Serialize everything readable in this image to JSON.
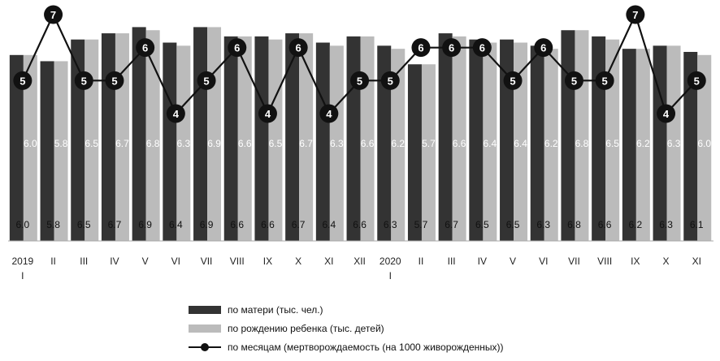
{
  "chart_data": {
    "type": "bar",
    "categories": [
      "2019 I",
      "II",
      "III",
      "IV",
      "V",
      "VI",
      "VII",
      "VIII",
      "IX",
      "X",
      "XI",
      "XII",
      "2020 I",
      "II",
      "III",
      "IV",
      "V",
      "VI",
      "VII",
      "VIII",
      "IX",
      "X",
      "XI"
    ],
    "x_tick_labels": [
      {
        "line1": "2019",
        "line2": "I"
      },
      {
        "line1": "II",
        "line2": ""
      },
      {
        "line1": "III",
        "line2": ""
      },
      {
        "line1": "IV",
        "line2": ""
      },
      {
        "line1": "V",
        "line2": ""
      },
      {
        "line1": "VI",
        "line2": ""
      },
      {
        "line1": "VII",
        "line2": ""
      },
      {
        "line1": "VIII",
        "line2": ""
      },
      {
        "line1": "IX",
        "line2": ""
      },
      {
        "line1": "X",
        "line2": ""
      },
      {
        "line1": "XI",
        "line2": ""
      },
      {
        "line1": "XII",
        "line2": ""
      },
      {
        "line1": "2020",
        "line2": "I"
      },
      {
        "line1": "II",
        "line2": ""
      },
      {
        "line1": "III",
        "line2": ""
      },
      {
        "line1": "IV",
        "line2": ""
      },
      {
        "line1": "V",
        "line2": ""
      },
      {
        "line1": "VI",
        "line2": ""
      },
      {
        "line1": "VII",
        "line2": ""
      },
      {
        "line1": "VIII",
        "line2": ""
      },
      {
        "line1": "IX",
        "line2": ""
      },
      {
        "line1": "X",
        "line2": ""
      },
      {
        "line1": "XI",
        "line2": ""
      }
    ],
    "series": [
      {
        "name": "по матери (тыс. чел.)",
        "type": "bar",
        "color": "#333333",
        "values": [
          6.0,
          5.8,
          6.5,
          6.7,
          6.9,
          6.4,
          6.9,
          6.6,
          6.6,
          6.7,
          6.4,
          6.6,
          6.3,
          5.7,
          6.7,
          6.5,
          6.5,
          6.3,
          6.8,
          6.6,
          6.2,
          6.3,
          6.1
        ],
        "labels": [
          "6.0",
          "5.8",
          "6.5",
          "6.7",
          "6.9",
          "6.4",
          "6.9",
          "6.6",
          "6.6",
          "6.7",
          "6.4",
          "6.6",
          "6.3",
          "5.7",
          "6.7",
          "6.5",
          "6.5",
          "6.3",
          "6.8",
          "6.6",
          "6.2",
          "6.3",
          "6.1"
        ]
      },
      {
        "name": "по рождению ребенка (тыс. детей)",
        "type": "bar",
        "color": "#bbbbbb",
        "values": [
          6.0,
          5.8,
          6.5,
          6.7,
          6.8,
          6.3,
          6.9,
          6.6,
          6.5,
          6.7,
          6.3,
          6.6,
          6.2,
          5.7,
          6.6,
          6.4,
          6.4,
          6.2,
          6.8,
          6.5,
          6.2,
          6.3,
          6.0
        ],
        "labels": [
          "6.0",
          "5.8",
          "6.5",
          "6.7",
          "6.8",
          "6.3",
          "6.9",
          "6.6",
          "6.5",
          "6.7",
          "6.3",
          "6.6",
          "6.2",
          "5.7",
          "6.6",
          "6.4",
          "6.4",
          "6.2",
          "6.8",
          "6.5",
          "6.2",
          "6.3",
          "6.0"
        ]
      },
      {
        "name": "по месяцам (мертворождаемость (на 1000 живорожденных))",
        "type": "line",
        "color": "#111111",
        "values": [
          5,
          7,
          5,
          5,
          6,
          4,
          5,
          6,
          4,
          6,
          4,
          5,
          5,
          6,
          6,
          6,
          5,
          6,
          5,
          5,
          7,
          4,
          5
        ],
        "labels": [
          "5",
          "7",
          "5",
          "5",
          "6",
          "4",
          "5",
          "6",
          "4",
          "6",
          "4",
          "5",
          "5",
          "6",
          "6",
          "6",
          "5",
          "6",
          "5",
          "5",
          "7",
          "4",
          "5"
        ]
      }
    ],
    "bar_axis_range": [
      0,
      7
    ],
    "line_axis_range": [
      2.3,
      8.0
    ],
    "grid": false,
    "legend_position": "bottom"
  }
}
